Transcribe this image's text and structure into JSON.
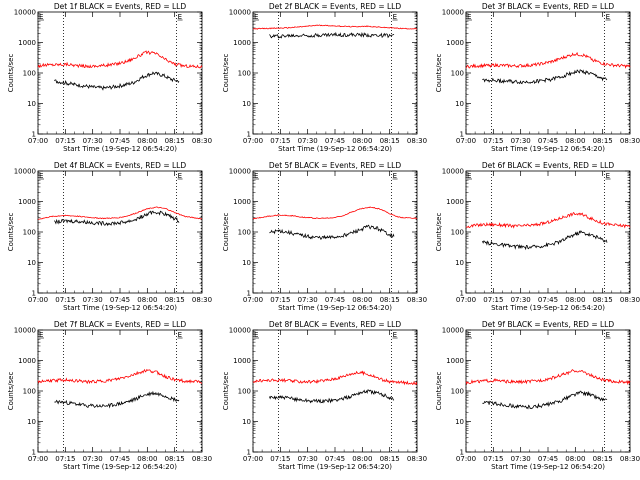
{
  "x_tick_labels": [
    "07:00",
    "07:15",
    "07:30",
    "07:45",
    "08:00",
    "08:15",
    "08:30"
  ],
  "y_tick_labels": [
    "1",
    "10",
    "100",
    "1000",
    "10000"
  ],
  "y_axis_label": "Counts/sec",
  "x_axis_label": "Start Time (19-Sep-12 06:54:20)",
  "marker_label": "E",
  "colors": {
    "events": "#000000",
    "lld": "#ff0000",
    "axes": "#000000"
  },
  "chart_data": [
    {
      "title": "Det 1f BLACK = Events, RED = LLD",
      "type": "line",
      "yscale": "log",
      "xlim_min": [
        0,
        100
      ],
      "ylim": [
        1,
        10000
      ],
      "markers_min": [
        0,
        15.5,
        84.5,
        99.5
      ],
      "series": [
        {
          "id": "lld",
          "x": [
            0,
            6,
            12,
            18,
            24,
            30,
            36,
            42,
            48,
            54,
            60,
            66,
            72,
            78,
            84,
            90,
            96,
            100
          ],
          "y": [
            170,
            185,
            190,
            195,
            175,
            165,
            170,
            180,
            200,
            240,
            330,
            480,
            430,
            270,
            190,
            170,
            165,
            160
          ]
        },
        {
          "id": "events",
          "x": [
            10,
            16,
            22,
            28,
            34,
            40,
            46,
            52,
            58,
            64,
            70,
            76,
            82,
            86
          ],
          "y": [
            55,
            48,
            42,
            38,
            34,
            32,
            35,
            40,
            48,
            75,
            100,
            85,
            60,
            55
          ]
        }
      ]
    },
    {
      "title": "Det 2f BLACK = Events, RED = LLD",
      "type": "line",
      "yscale": "log",
      "xlim_min": [
        0,
        100
      ],
      "ylim": [
        1,
        10000
      ],
      "markers_min": [
        0,
        15.5,
        84.5,
        99.5
      ],
      "series": [
        {
          "id": "lld",
          "x": [
            0,
            10,
            20,
            30,
            40,
            50,
            60,
            70,
            80,
            90,
            100
          ],
          "y": [
            2800,
            2900,
            3000,
            3300,
            3700,
            3500,
            3300,
            3400,
            3100,
            2900,
            2800
          ]
        },
        {
          "id": "events",
          "x": [
            10,
            20,
            30,
            40,
            50,
            60,
            70,
            80,
            86
          ],
          "y": [
            1600,
            1650,
            1700,
            1750,
            1800,
            1780,
            1750,
            1700,
            1650
          ]
        }
      ]
    },
    {
      "title": "Det 3f BLACK = Events, RED = LLD",
      "type": "line",
      "yscale": "log",
      "xlim_min": [
        0,
        100
      ],
      "ylim": [
        1,
        10000
      ],
      "markers_min": [
        0,
        15.5,
        84.5,
        99.5
      ],
      "series": [
        {
          "id": "lld",
          "x": [
            0,
            6,
            12,
            18,
            24,
            30,
            36,
            42,
            48,
            54,
            60,
            66,
            72,
            78,
            84,
            90,
            96,
            100
          ],
          "y": [
            160,
            170,
            175,
            180,
            175,
            170,
            175,
            185,
            210,
            250,
            330,
            420,
            380,
            260,
            200,
            180,
            170,
            165
          ]
        },
        {
          "id": "events",
          "x": [
            10,
            16,
            22,
            28,
            34,
            40,
            46,
            52,
            58,
            64,
            70,
            76,
            82,
            86
          ],
          "y": [
            60,
            58,
            55,
            52,
            50,
            52,
            56,
            62,
            75,
            100,
            115,
            95,
            70,
            60
          ]
        }
      ]
    },
    {
      "title": "Det 4f BLACK = Events, RED = LLD",
      "type": "line",
      "yscale": "log",
      "xlim_min": [
        0,
        100
      ],
      "ylim": [
        1,
        10000
      ],
      "markers_min": [
        0,
        15.5,
        84.5,
        99.5
      ],
      "series": [
        {
          "id": "lld",
          "x": [
            0,
            8,
            16,
            24,
            32,
            40,
            48,
            54,
            60,
            66,
            72,
            78,
            84,
            90,
            100
          ],
          "y": [
            260,
            320,
            350,
            330,
            300,
            280,
            290,
            330,
            420,
            560,
            650,
            580,
            420,
            320,
            270
          ]
        },
        {
          "id": "events",
          "x": [
            10,
            18,
            26,
            34,
            42,
            50,
            58,
            64,
            70,
            76,
            82,
            86
          ],
          "y": [
            210,
            230,
            220,
            200,
            190,
            200,
            240,
            330,
            450,
            420,
            300,
            230
          ]
        }
      ]
    },
    {
      "title": "Det 5f BLACK = Events, RED = LLD",
      "type": "line",
      "yscale": "log",
      "xlim_min": [
        0,
        100
      ],
      "ylim": [
        1,
        10000
      ],
      "markers_min": [
        0,
        15.5,
        84.5,
        99.5
      ],
      "series": [
        {
          "id": "lld",
          "x": [
            0,
            8,
            16,
            24,
            32,
            40,
            48,
            54,
            60,
            66,
            72,
            78,
            84,
            90,
            100
          ],
          "y": [
            270,
            320,
            360,
            340,
            300,
            280,
            290,
            330,
            450,
            580,
            650,
            560,
            380,
            300,
            280
          ]
        },
        {
          "id": "events",
          "x": [
            10,
            16,
            22,
            28,
            34,
            40,
            46,
            52,
            58,
            64,
            70,
            76,
            82,
            86
          ],
          "y": [
            95,
            110,
            95,
            80,
            70,
            65,
            65,
            70,
            85,
            110,
            150,
            130,
            90,
            70
          ]
        }
      ]
    },
    {
      "title": "Det 6f BLACK = Events, RED = LLD",
      "type": "line",
      "yscale": "log",
      "xlim_min": [
        0,
        100
      ],
      "ylim": [
        1,
        10000
      ],
      "markers_min": [
        0,
        15.5,
        84.5,
        99.5
      ],
      "series": [
        {
          "id": "lld",
          "x": [
            0,
            6,
            12,
            18,
            24,
            30,
            36,
            42,
            48,
            54,
            60,
            66,
            72,
            78,
            84,
            90,
            96,
            100
          ],
          "y": [
            150,
            165,
            175,
            175,
            165,
            155,
            160,
            170,
            195,
            240,
            320,
            400,
            360,
            250,
            190,
            170,
            160,
            155
          ]
        },
        {
          "id": "events",
          "x": [
            10,
            16,
            22,
            28,
            34,
            40,
            46,
            52,
            58,
            64,
            70,
            76,
            82,
            86
          ],
          "y": [
            45,
            42,
            38,
            34,
            32,
            32,
            35,
            40,
            50,
            75,
            100,
            80,
            60,
            50
          ]
        }
      ]
    },
    {
      "title": "Det 7f BLACK = Events, RED = LLD",
      "type": "line",
      "yscale": "log",
      "xlim_min": [
        0,
        100
      ],
      "ylim": [
        1,
        10000
      ],
      "markers_min": [
        0,
        15.5,
        84.5,
        99.5
      ],
      "series": [
        {
          "id": "lld",
          "x": [
            0,
            6,
            12,
            18,
            24,
            30,
            36,
            42,
            48,
            54,
            60,
            66,
            72,
            78,
            84,
            90,
            96,
            100
          ],
          "y": [
            200,
            215,
            225,
            230,
            215,
            200,
            205,
            215,
            240,
            290,
            370,
            470,
            420,
            290,
            230,
            210,
            200,
            195
          ]
        },
        {
          "id": "events",
          "x": [
            10,
            16,
            22,
            28,
            34,
            40,
            46,
            52,
            58,
            64,
            70,
            76,
            82,
            86
          ],
          "y": [
            45,
            42,
            38,
            34,
            32,
            32,
            35,
            40,
            50,
            70,
            85,
            75,
            55,
            48
          ]
        }
      ]
    },
    {
      "title": "Det 8f BLACK = Events, RED = LLD",
      "type": "line",
      "yscale": "log",
      "xlim_min": [
        0,
        100
      ],
      "ylim": [
        1,
        10000
      ],
      "markers_min": [
        0,
        15.5,
        84.5,
        99.5
      ],
      "series": [
        {
          "id": "lld",
          "x": [
            0,
            6,
            12,
            18,
            24,
            30,
            36,
            42,
            48,
            54,
            60,
            66,
            72,
            78,
            84,
            90,
            96,
            100
          ],
          "y": [
            210,
            220,
            225,
            225,
            210,
            200,
            205,
            215,
            240,
            290,
            370,
            400,
            330,
            240,
            200,
            190,
            185,
            180
          ]
        },
        {
          "id": "events",
          "x": [
            10,
            16,
            22,
            28,
            34,
            40,
            46,
            52,
            58,
            64,
            70,
            76,
            82,
            86
          ],
          "y": [
            60,
            62,
            58,
            52,
            48,
            46,
            48,
            52,
            62,
            85,
            100,
            85,
            65,
            55
          ]
        }
      ]
    },
    {
      "title": "Det 9f BLACK = Events, RED = LLD",
      "type": "line",
      "yscale": "log",
      "xlim_min": [
        0,
        100
      ],
      "ylim": [
        1,
        10000
      ],
      "markers_min": [
        0,
        15.5,
        84.5,
        99.5
      ],
      "series": [
        {
          "id": "lld",
          "x": [
            0,
            6,
            12,
            18,
            24,
            30,
            36,
            42,
            48,
            54,
            60,
            66,
            72,
            78,
            84,
            90,
            96,
            100
          ],
          "y": [
            190,
            205,
            215,
            220,
            205,
            195,
            200,
            210,
            235,
            280,
            360,
            470,
            420,
            290,
            225,
            205,
            195,
            190
          ]
        },
        {
          "id": "events",
          "x": [
            10,
            16,
            22,
            28,
            34,
            40,
            46,
            52,
            58,
            64,
            70,
            76,
            82,
            86
          ],
          "y": [
            42,
            40,
            36,
            33,
            30,
            30,
            33,
            38,
            48,
            70,
            90,
            75,
            55,
            48
          ]
        }
      ]
    }
  ]
}
